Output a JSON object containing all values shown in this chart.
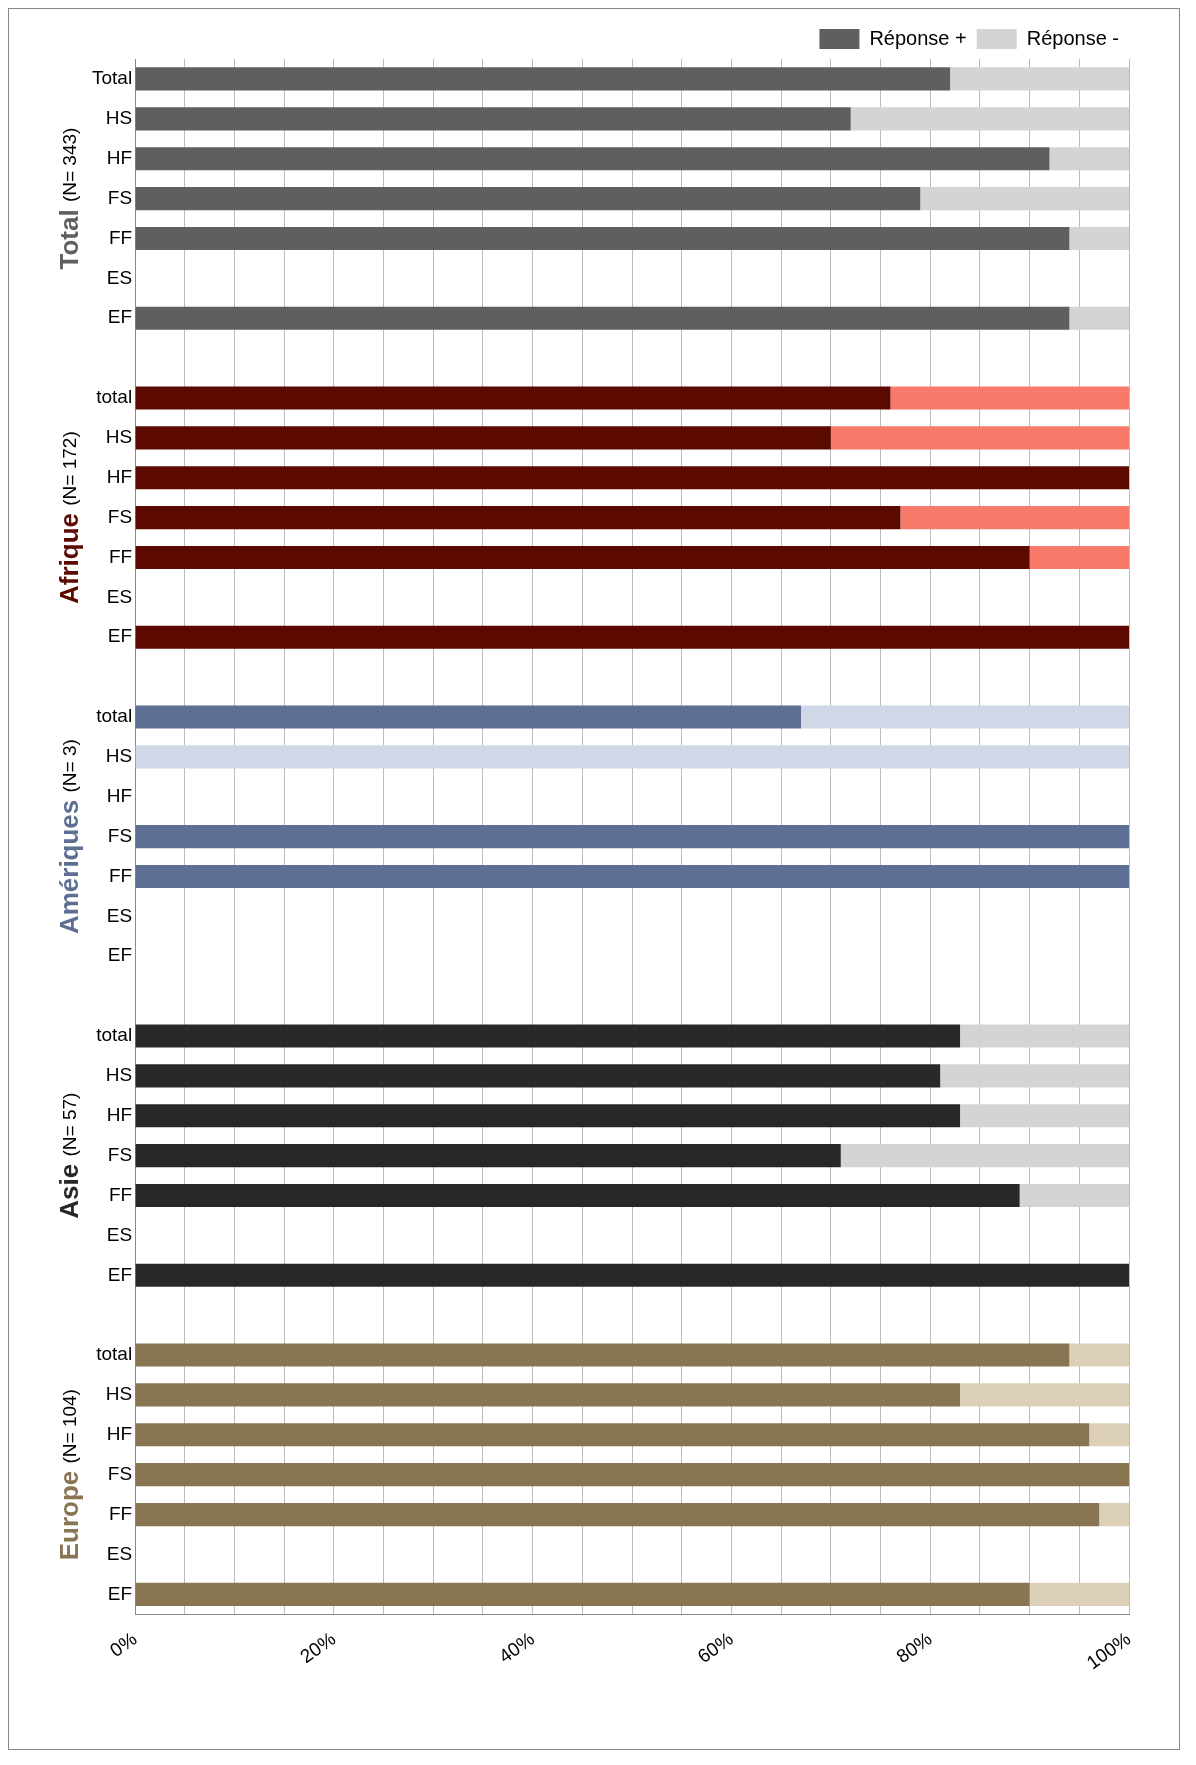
{
  "chart_data": {
    "type": "bar",
    "orientation": "horizontal",
    "stacked": true,
    "categories": [
      "Total",
      "HS",
      "HF",
      "FS",
      "FF",
      "ES",
      "EF",
      null,
      "total",
      "HS",
      "HF",
      "FS",
      "FF",
      "ES",
      "EF",
      null,
      "total",
      "HS",
      "HF",
      "FS",
      "FF",
      "ES",
      "EF",
      null,
      "total",
      "HS",
      "HF",
      "FS",
      "FF",
      "ES",
      "EF",
      null,
      "total",
      "HS",
      "HF",
      "FS",
      "FF",
      "ES",
      "EF"
    ],
    "series": [
      {
        "name": "Réponse +",
        "color": "#5f5f5f",
        "values": [
          82,
          72,
          92,
          79,
          94,
          null,
          94,
          null,
          76,
          70,
          100,
          77,
          90,
          null,
          100,
          null,
          67,
          0,
          null,
          100,
          100,
          null,
          null,
          null,
          83,
          81,
          83,
          71,
          89,
          null,
          100,
          null,
          94,
          83,
          96,
          100,
          97,
          null,
          90
        ],
        "colors": [
          "#5f5f5f",
          "#5f5f5f",
          "#5f5f5f",
          "#5f5f5f",
          "#5f5f5f",
          "#5f5f5f",
          "#5f5f5f",
          null,
          "#5c0a00",
          "#5c0a00",
          "#5c0a00",
          "#5c0a00",
          "#5c0a00",
          "#5c0a00",
          "#5c0a00",
          null,
          "#5d6f93",
          "#5d6f93",
          "#5d6f93",
          "#5d6f93",
          "#5d6f93",
          "#5d6f93",
          "#5d6f93",
          null,
          "#282828",
          "#282828",
          "#282828",
          "#282828",
          "#282828",
          "#282828",
          "#282828",
          null,
          "#8a7553",
          "#8a7553",
          "#8a7553",
          "#8a7553",
          "#8a7553",
          "#8a7553",
          "#8a7553"
        ]
      },
      {
        "name": "Réponse -",
        "color": "#d4d4d4",
        "values": [
          18,
          28,
          8,
          21,
          6,
          null,
          6,
          null,
          24,
          30,
          0,
          23,
          10,
          null,
          0,
          null,
          33,
          100,
          null,
          0,
          0,
          null,
          null,
          null,
          17,
          19,
          17,
          29,
          11,
          null,
          0,
          null,
          6,
          17,
          4,
          0,
          3,
          null,
          10
        ],
        "colors": [
          "#d4d4d4",
          "#d4d4d4",
          "#d4d4d4",
          "#d4d4d4",
          "#d4d4d4",
          "#d4d4d4",
          "#d4d4d4",
          null,
          "#f77a6a",
          "#f77a6a",
          "#f77a6a",
          "#f77a6a",
          "#f77a6a",
          "#f77a6a",
          "#f77a6a",
          null,
          "#d0d8e8",
          "#d0d8e8",
          "#d0d8e8",
          "#d0d8e8",
          "#d0d8e8",
          "#d0d8e8",
          "#d0d8e8",
          null,
          "#d4d4d4",
          "#d4d4d4",
          "#d4d4d4",
          "#d4d4d4",
          "#d4d4d4",
          "#d4d4d4",
          "#d4d4d4",
          null,
          "#ddd0b8",
          "#ddd0b8",
          "#ddd0b8",
          "#ddd0b8",
          "#ddd0b8",
          "#ddd0b8",
          "#ddd0b8"
        ]
      }
    ],
    "xlim": [
      0,
      100
    ],
    "xticks": [
      {
        "value": 0,
        "label": "0%"
      },
      {
        "value": 5,
        "label": null
      },
      {
        "value": 10,
        "label": null
      },
      {
        "value": 15,
        "label": null
      },
      {
        "value": 20,
        "label": "20%"
      },
      {
        "value": 25,
        "label": null
      },
      {
        "value": 30,
        "label": null
      },
      {
        "value": 35,
        "label": null
      },
      {
        "value": 40,
        "label": "40%"
      },
      {
        "value": 45,
        "label": null
      },
      {
        "value": 50,
        "label": null
      },
      {
        "value": 55,
        "label": null
      },
      {
        "value": 60,
        "label": "60%"
      },
      {
        "value": 65,
        "label": null
      },
      {
        "value": 70,
        "label": null
      },
      {
        "value": 75,
        "label": null
      },
      {
        "value": 80,
        "label": "80%"
      },
      {
        "value": 85,
        "label": null
      },
      {
        "value": 90,
        "label": null
      },
      {
        "value": 95,
        "label": null
      },
      {
        "value": 100,
        "label": "100%"
      }
    ],
    "grid": "x",
    "legend": "top",
    "annotations": [
      "Total (N= 343)",
      "Afrique (N= 172)",
      "Amériques (N= 3)",
      "Asie (N= 57)",
      "Europe (N= 104)"
    ]
  }
}
